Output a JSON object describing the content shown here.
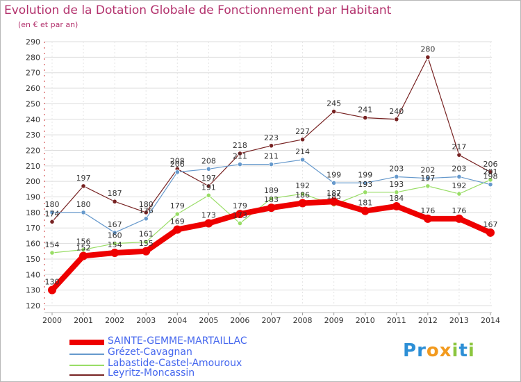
{
  "title": "Evolution de la Dotation Globale de Fonctionnement par Habitant",
  "subtitle": "(en € et par an)",
  "logo": {
    "text": "Proxiti",
    "letters": [
      "P",
      "r",
      "o",
      "x",
      "i",
      "t",
      "i"
    ],
    "colors": [
      "#2d8fd6",
      "#2d8fd6",
      "#f29a1e",
      "#f29a1e",
      "#8cc63f",
      "#2d8fd6",
      "#8cc63f"
    ]
  },
  "chart_data": {
    "type": "line",
    "title": "Evolution de la Dotation Globale de Fonctionnement par Habitant",
    "ylabel": "(en € et par an)",
    "xlabel": "",
    "x": [
      2000,
      2001,
      2002,
      2003,
      2004,
      2005,
      2006,
      2007,
      2008,
      2009,
      2010,
      2011,
      2012,
      2013,
      2014
    ],
    "ylim": [
      120,
      290
    ],
    "yticks": [
      120,
      130,
      140,
      150,
      160,
      170,
      180,
      190,
      200,
      210,
      220,
      230,
      240,
      250,
      260,
      270,
      280,
      290
    ],
    "grid": "horizontal",
    "series": [
      {
        "name": "SAINTE-GEMME-MARTAILLAC",
        "color": "#ee0000",
        "width": 8,
        "marker": 6,
        "values": [
          130,
          152,
          154,
          155,
          169,
          173,
          179,
          183,
          186,
          187,
          181,
          184,
          176,
          176,
          167
        ],
        "labels": [
          "130",
          "152",
          "154",
          "155",
          "169",
          "173",
          "179",
          "183",
          "186",
          "187",
          "181",
          "184",
          "176",
          "176",
          "167"
        ]
      },
      {
        "name": "Grézet-Cavagnan",
        "color": "#6699cc",
        "width": 1.2,
        "marker": 3.2,
        "values": [
          180,
          180,
          167,
          176,
          206,
          208,
          211,
          211,
          214,
          199,
          199,
          203,
          202,
          203,
          198
        ],
        "labels": [
          "180",
          "180",
          "167",
          "176",
          "206",
          "208",
          "211",
          "211",
          "214",
          "199",
          "199",
          "203",
          "202",
          "203",
          "198"
        ]
      },
      {
        "name": "Labastide-Castel-Amouroux",
        "color": "#99dd66",
        "width": 1.2,
        "marker": 3.2,
        "values": [
          154,
          156,
          160,
          161,
          179,
          191,
          173,
          189,
          192,
          185,
          193,
          193,
          197,
          192,
          201
        ],
        "labels": [
          "154",
          "156",
          "160",
          "161",
          "179",
          "191",
          "173",
          "189",
          "192",
          "185",
          "193",
          "193",
          "197",
          "192",
          "201"
        ]
      },
      {
        "name": "Leyritz-Moncassin",
        "color": "#772222",
        "width": 1.2,
        "marker": 3.2,
        "values": [
          174,
          197,
          187,
          180,
          208,
          197,
          218,
          223,
          227,
          245,
          241,
          240,
          280,
          217,
          206
        ],
        "labels": [
          "174",
          "197",
          "187",
          "180",
          "208",
          "197",
          "218",
          "223",
          "227",
          "245",
          "241",
          "240",
          "280",
          "217",
          "206"
        ]
      }
    ]
  }
}
